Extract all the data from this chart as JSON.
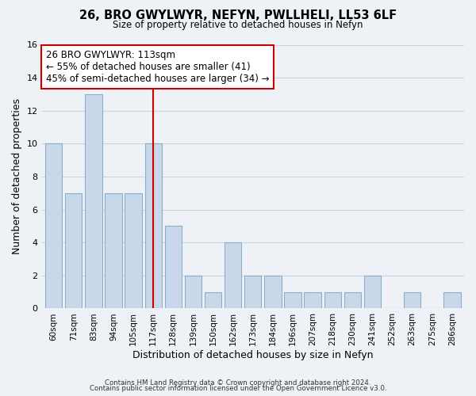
{
  "title": "26, BRO GWYLWYR, NEFYN, PWLLHELI, LL53 6LF",
  "subtitle": "Size of property relative to detached houses in Nefyn",
  "xlabel": "Distribution of detached houses by size in Nefyn",
  "ylabel": "Number of detached properties",
  "bin_labels": [
    "60sqm",
    "71sqm",
    "83sqm",
    "94sqm",
    "105sqm",
    "117sqm",
    "128sqm",
    "139sqm",
    "150sqm",
    "162sqm",
    "173sqm",
    "184sqm",
    "196sqm",
    "207sqm",
    "218sqm",
    "230sqm",
    "241sqm",
    "252sqm",
    "263sqm",
    "275sqm",
    "286sqm"
  ],
  "bar_heights": [
    10,
    7,
    13,
    7,
    7,
    10,
    5,
    2,
    1,
    4,
    2,
    2,
    1,
    1,
    1,
    1,
    2,
    0,
    1,
    0,
    1
  ],
  "bar_color": "#c8d8ea",
  "bar_edge_color": "#8aafc8",
  "highlight_bar_index": 5,
  "highlight_line_color": "#cc0000",
  "annotation_text": "26 BRO GWYLWYR: 113sqm\n← 55% of detached houses are smaller (41)\n45% of semi-detached houses are larger (34) →",
  "annotation_box_color": "white",
  "annotation_box_edge_color": "#cc0000",
  "ylim": [
    0,
    16
  ],
  "yticks": [
    0,
    2,
    4,
    6,
    8,
    10,
    12,
    14,
    16
  ],
  "grid_color": "#c8d4de",
  "background_color": "#eef2f6",
  "footer_line1": "Contains HM Land Registry data © Crown copyright and database right 2024.",
  "footer_line2": "Contains public sector information licensed under the Open Government Licence v3.0."
}
